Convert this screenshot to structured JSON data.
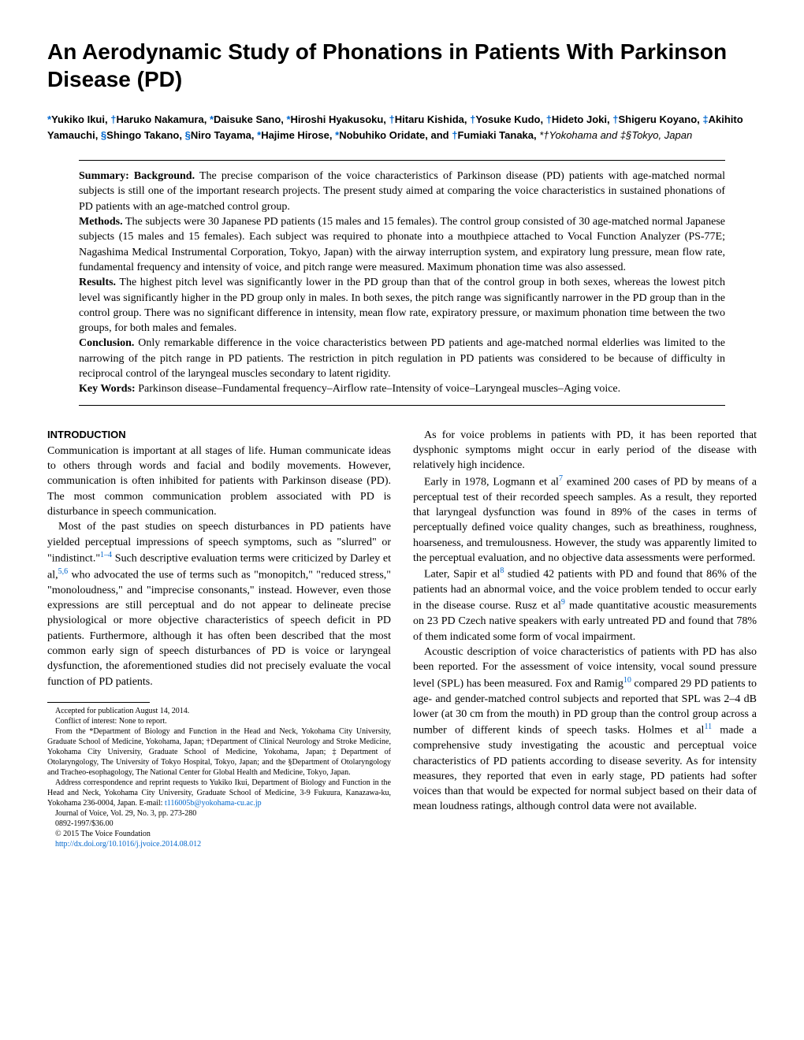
{
  "title": "An Aerodynamic Study of Phonations in Patients With Parkinson Disease (PD)",
  "authors_html": "<span class='affil-mark'>*</span>Yukiko Ikui, <span class='affil-mark'>†</span>Haruko Nakamura, <span class='affil-mark'>*</span>Daisuke Sano, <span class='affil-mark'>*</span>Hiroshi Hyakusoku, <span class='affil-mark'>†</span>Hitaru Kishida, <span class='affil-mark'>†</span>Yosuke Kudo, <span class='affil-mark'>†</span>Hideto Joki, <span class='affil-mark'>†</span>Shigeru Koyano, <span class='affil-mark'>‡</span>Akihito Yamauchi, <span class='affil-mark'>§</span>Shingo Takano, <span class='affil-mark'>§</span>Niro Tayama, <span class='affil-mark'>*</span>Hajime Hirose, <span class='affil-mark'>*</span>Nobuhiko Oridate, and <span class='affil-mark'>†</span>Fumiaki Tanaka, <span class='affil-text'>*†Yokohama and ‡§Tokyo, Japan</span>",
  "abstract": {
    "summary_label": "Summary: Background.",
    "summary_text": " The precise comparison of the voice characteristics of Parkinson disease (PD) patients with age-matched normal subjects is still one of the important research projects. The present study aimed at comparing the voice characteristics in sustained phonations of PD patients with an age-matched control group.",
    "methods_label": "Methods.",
    "methods_text": " The subjects were 30 Japanese PD patients (15 males and 15 females). The control group consisted of 30 age-matched normal Japanese subjects (15 males and 15 females). Each subject was required to phonate into a mouthpiece attached to Vocal Function Analyzer (PS-77E; Nagashima Medical Instrumental Corporation, Tokyo, Japan) with the airway interruption system, and expiratory lung pressure, mean flow rate, fundamental frequency and intensity of voice, and pitch range were measured. Maximum phonation time was also assessed.",
    "results_label": "Results.",
    "results_text": " The highest pitch level was significantly lower in the PD group than that of the control group in both sexes, whereas the lowest pitch level was significantly higher in the PD group only in males. In both sexes, the pitch range was significantly narrower in the PD group than in the control group. There was no significant difference in intensity, mean flow rate, expiratory pressure, or maximum phonation time between the two groups, for both males and females.",
    "conclusion_label": "Conclusion.",
    "conclusion_text": " Only remarkable difference in the voice characteristics between PD patients and age-matched normal elderlies was limited to the narrowing of the pitch range in PD patients. The restriction in pitch regulation in PD patients was considered to be because of difficulty in reciprocal control of the laryngeal muscles secondary to latent rigidity.",
    "keywords_label": "Key Words:",
    "keywords_text": " Parkinson disease–Fundamental frequency–Airflow rate–Intensity of voice–Laryngeal muscles–Aging voice."
  },
  "left_column": {
    "section_head": "INTRODUCTION",
    "p1": "Communication is important at all stages of life. Human communicate ideas to others through words and facial and bodily movements. However, communication is often inhibited for patients with Parkinson disease (PD). The most common communication problem associated with PD is disturbance in speech communication.",
    "p2_pre": "Most of the past studies on speech disturbances in PD patients have yielded perceptual impressions of speech symptoms, such as \"slurred\" or \"indistinct.\"",
    "p2_ref1": "1–4",
    "p2_mid": " Such descriptive evaluation terms were criticized by Darley et al,",
    "p2_ref2": "5,6",
    "p2_post": " who advocated the use of terms such as \"monopitch,\" \"reduced stress,\" \"monoloudness,\" and \"imprecise consonants,\" instead. However, even those expressions are still perceptual and do not appear to delineate precise physiological or more objective characteristics of speech deficit in PD patients. Furthermore, although it has often been described that the most common early sign of speech disturbances of PD is voice or laryngeal dysfunction, the aforementioned studies did not precisely evaluate the vocal function of PD patients."
  },
  "footnotes": {
    "f1": "Accepted for publication August 14, 2014.",
    "f2": "Conflict of interest: None to report.",
    "f3": "From the *Department of Biology and Function in the Head and Neck, Yokohama City University, Graduate School of Medicine, Yokohama, Japan; †Department of Clinical Neurology and Stroke Medicine, Yokohama City University, Graduate School of Medicine, Yokohama, Japan; ‡Department of Otolaryngology, The University of Tokyo Hospital, Tokyo, Japan; and the §Department of Otolaryngology and Tracheo-esophagology, The National Center for Global Health and Medicine, Tokyo, Japan.",
    "f4_pre": "Address correspondence and reprint requests to Yukiko Ikui, Department of Biology and Function in the Head and Neck, Yokohama City University, Graduate School of Medicine, 3-9 Fukuura, Kanazawa-ku, Yokohama 236-0004, Japan. E-mail: ",
    "f4_link": "t116005b@yokohama-cu.ac.jp",
    "f5": "Journal of Voice, Vol. 29, No. 3, pp. 273-280",
    "f6": "0892-1997/$36.00",
    "f7": "© 2015 The Voice Foundation",
    "f8": "http://dx.doi.org/10.1016/j.jvoice.2014.08.012"
  },
  "right_column": {
    "p1": "As for voice problems in patients with PD, it has been reported that dysphonic symptoms might occur in early period of the disease with relatively high incidence.",
    "p2_pre": "Early in 1978, Logmann et al",
    "p2_ref": "7",
    "p2_post": " examined 200 cases of PD by means of a perceptual test of their recorded speech samples. As a result, they reported that laryngeal dysfunction was found in 89% of the cases in terms of perceptually defined voice quality changes, such as breathiness, roughness, hoarseness, and tremulousness. However, the study was apparently limited to the perceptual evaluation, and no objective data assessments were performed.",
    "p3_pre": "Later, Sapir et al",
    "p3_ref1": "8",
    "p3_mid": " studied 42 patients with PD and found that 86% of the patients had an abnormal voice, and the voice problem tended to occur early in the disease course. Rusz et al",
    "p3_ref2": "9",
    "p3_post": " made quantitative acoustic measurements on 23 PD Czech native speakers with early untreated PD and found that 78% of them indicated some form of vocal impairment.",
    "p4_pre": "Acoustic description of voice characteristics of patients with PD has also been reported. For the assessment of voice intensity, vocal sound pressure level (SPL) has been measured. Fox and Ramig",
    "p4_ref1": "10",
    "p4_mid": " compared 29 PD patients to age- and gender-matched control subjects and reported that SPL was 2–4 dB lower (at 30 cm from the mouth) in PD group than the control group across a number of different kinds of speech tasks. Holmes et al",
    "p4_ref2": "11",
    "p4_post": " made a comprehensive study investigating the acoustic and perceptual voice characteristics of PD patients according to disease severity. As for intensity measures, they reported that even in early stage, PD patients had softer voices than that would be expected for normal subject based on their data of mean loudness ratings, although control data were not available."
  }
}
